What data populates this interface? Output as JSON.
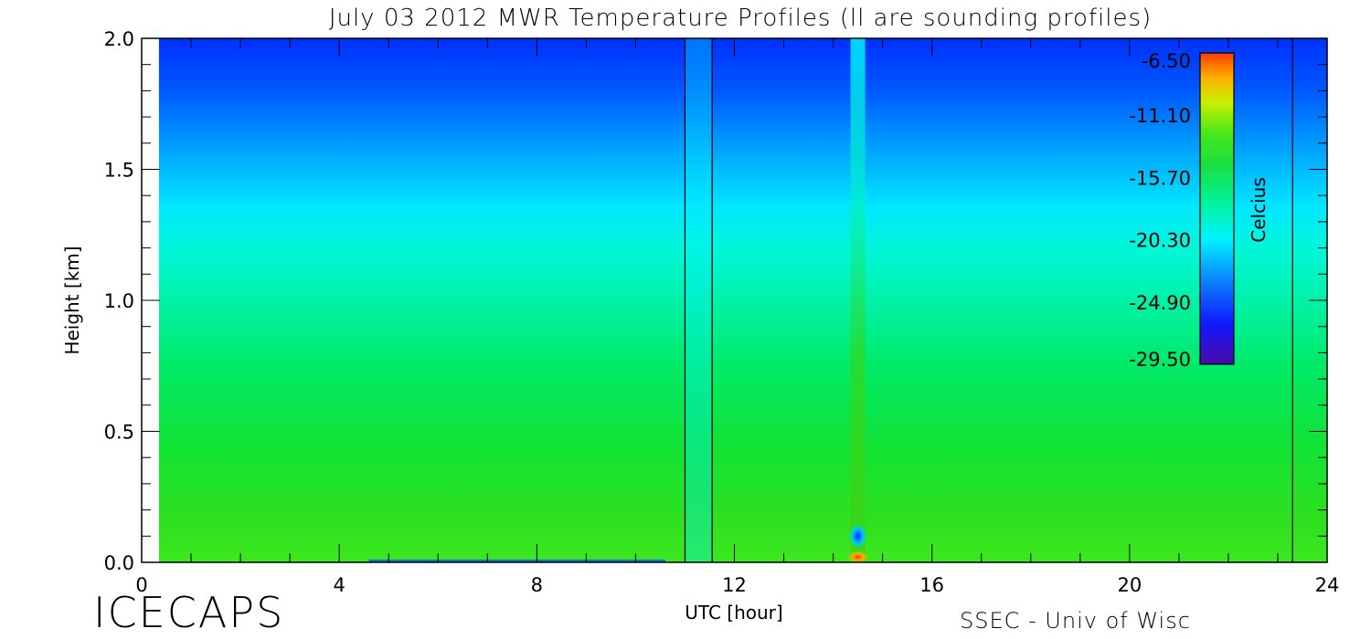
{
  "chart_data": {
    "type": "heatmap",
    "title": "July 03 2012 MWR Temperature Profiles (ll are sounding profiles)",
    "xlabel": "UTC [hour]",
    "ylabel": "Height [km]",
    "xlim": [
      0,
      24
    ],
    "ylim": [
      0,
      2.0
    ],
    "x_ticks": [
      0,
      4,
      8,
      12,
      16,
      20,
      24
    ],
    "x_tick_labels": [
      "0",
      "4",
      "8",
      "12",
      "16",
      "20",
      "24"
    ],
    "y_ticks": [
      0,
      0.5,
      1.0,
      1.5,
      2.0
    ],
    "y_tick_labels": [
      "0.0",
      "0.5",
      "1.0",
      "1.5",
      "2.0"
    ],
    "colorbar": {
      "label": "Celcius",
      "ticks": [
        -6.5,
        -11.1,
        -15.7,
        -20.3,
        -24.9,
        -29.5
      ],
      "tick_labels": [
        "-6.50",
        "-11.10",
        "-15.70",
        "-20.30",
        "-24.90",
        "-29.50"
      ],
      "range": [
        -29.5,
        -6.5
      ],
      "colormap": "rainbow"
    },
    "data_range_x": [
      0.35,
      24
    ],
    "sounding_profiles_utc": [
      11.0,
      11.55,
      23.3
    ],
    "temperature_profile": [
      {
        "height": 2.0,
        "temp": -26.5
      },
      {
        "height": 1.75,
        "temp": -24.5
      },
      {
        "height": 1.5,
        "temp": -22.5
      },
      {
        "height": 1.25,
        "temp": -20.3
      },
      {
        "height": 1.0,
        "temp": -18.8
      },
      {
        "height": 0.75,
        "temp": -17.5
      },
      {
        "height": 0.5,
        "temp": -16.5
      },
      {
        "height": 0.25,
        "temp": -15.8
      },
      {
        "height": 0.0,
        "temp": -15.2
      }
    ],
    "features": [
      {
        "type": "warm-column",
        "x": 14.5,
        "note": "warm anomaly column near 14.5 UTC"
      }
    ],
    "grid": false,
    "legend_position": "right-inside"
  },
  "footer": {
    "left_label": "ICECAPS",
    "right_label": "SSEC - Univ of Wisc"
  }
}
